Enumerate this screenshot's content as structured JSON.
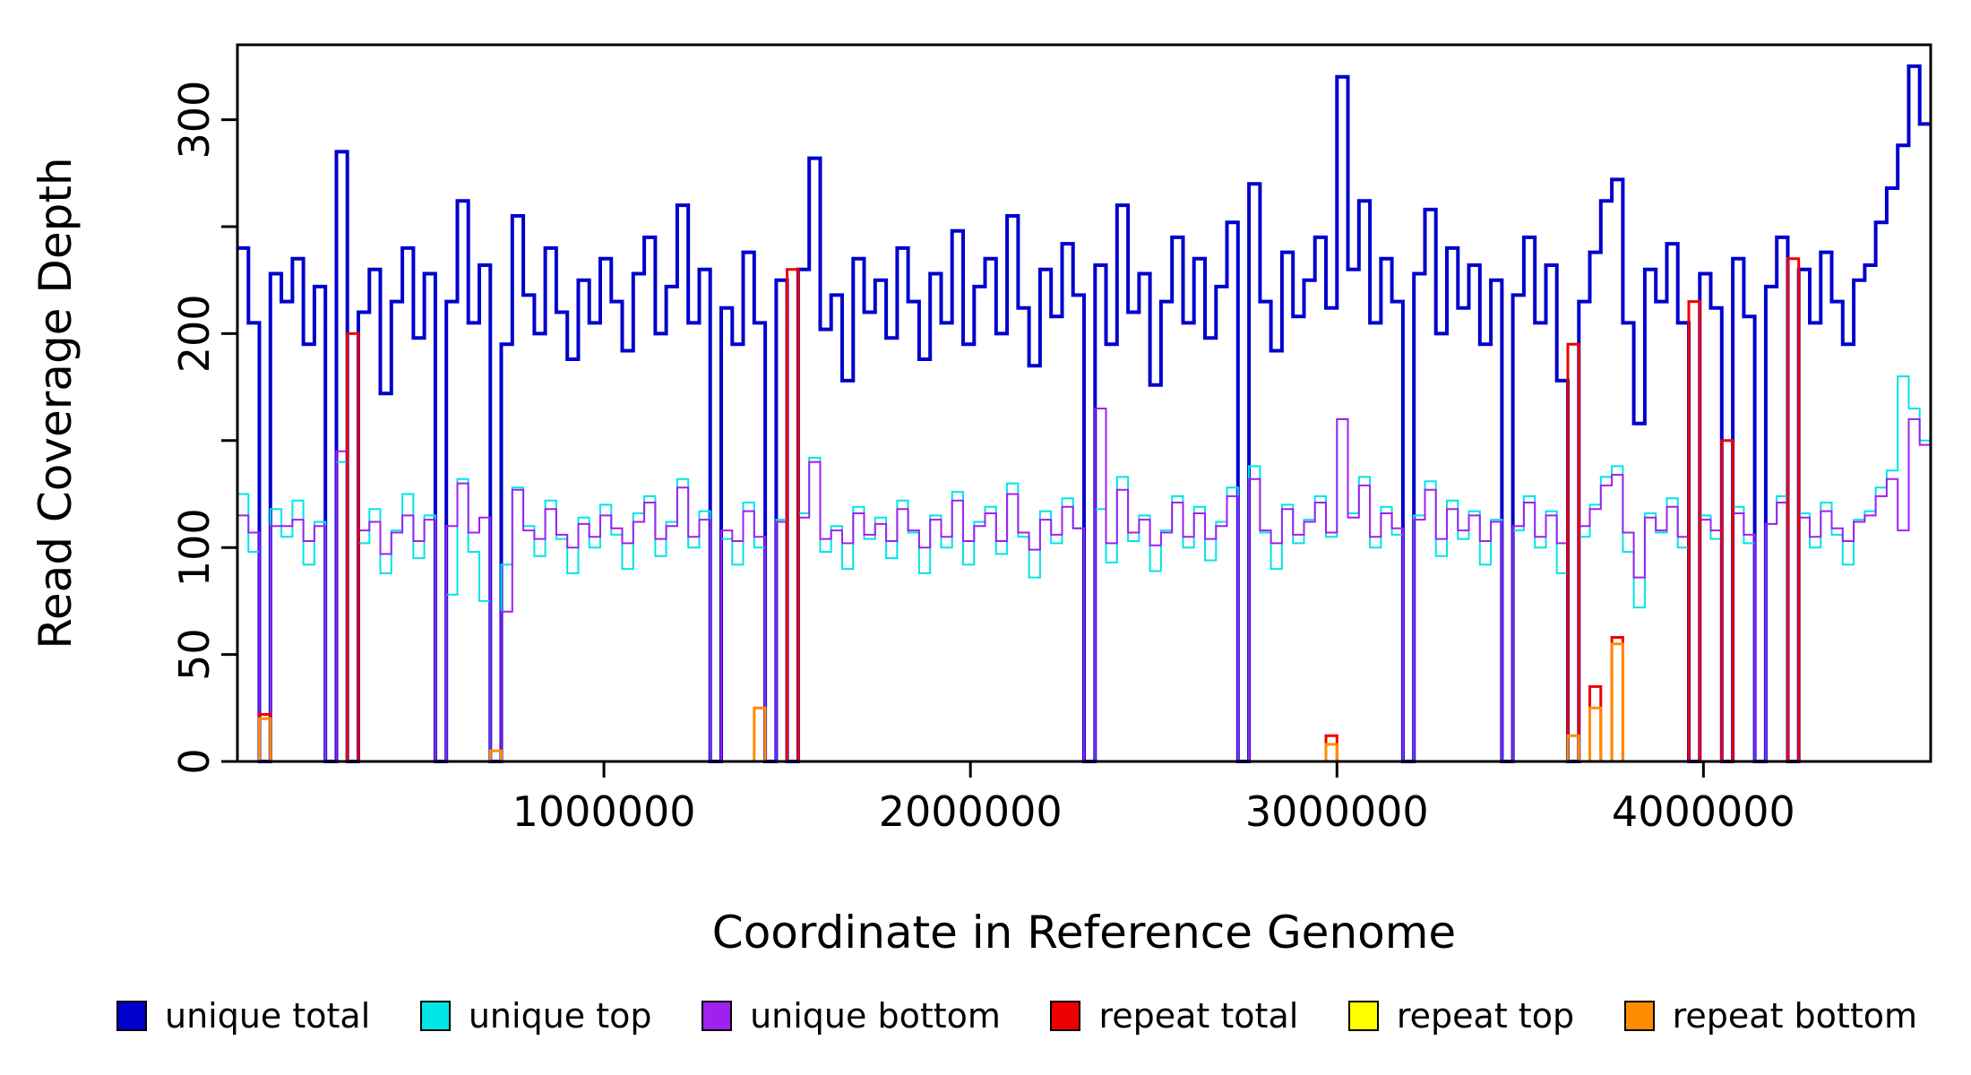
{
  "figure": {
    "ylabel": "Read Coverage Depth",
    "xlabel": "Coordinate in Reference Genome"
  },
  "axes": {
    "x_ticks": [
      {
        "value": 1000000,
        "label": "1000000"
      },
      {
        "value": 2000000,
        "label": "2000000"
      },
      {
        "value": 3000000,
        "label": "3000000"
      },
      {
        "value": 4000000,
        "label": "4000000"
      }
    ],
    "y_ticks": [
      {
        "value": 0,
        "label": "0"
      },
      {
        "value": 50,
        "label": "50"
      },
      {
        "value": 100,
        "label": "100"
      },
      {
        "value": 150,
        "label": ""
      },
      {
        "value": 200,
        "label": "200"
      },
      {
        "value": 250,
        "label": ""
      },
      {
        "value": 300,
        "label": "300"
      }
    ]
  },
  "legend": [
    {
      "label": "unique total",
      "color": "#0000CD"
    },
    {
      "label": "unique top",
      "color": "#00E5E5"
    },
    {
      "label": "unique bottom",
      "color": "#A020F0"
    },
    {
      "label": "repeat total",
      "color": "#EE0000"
    },
    {
      "label": "repeat top",
      "color": "#FFFF00"
    },
    {
      "label": "repeat bottom",
      "color": "#FF8C00"
    }
  ],
  "chart_data": {
    "type": "line",
    "step": true,
    "title": "",
    "xlabel": "Coordinate in Reference Genome",
    "ylabel": "Read Coverage Depth",
    "xlim": [
      0,
      4620000
    ],
    "ylim": [
      0,
      335
    ],
    "x_start": 0,
    "x_step": 30000,
    "series": [
      {
        "name": "unique total",
        "color": "#0000CD",
        "width": 4,
        "values": [
          240,
          205,
          0,
          228,
          215,
          235,
          195,
          222,
          0,
          285,
          0,
          210,
          230,
          172,
          215,
          240,
          198,
          228,
          0,
          215,
          262,
          205,
          232,
          0,
          195,
          255,
          218,
          200,
          240,
          210,
          188,
          225,
          205,
          235,
          215,
          192,
          228,
          245,
          200,
          222,
          260,
          205,
          230,
          0,
          212,
          195,
          238,
          205,
          0,
          225,
          0,
          230,
          282,
          202,
          218,
          178,
          235,
          210,
          225,
          198,
          240,
          215,
          188,
          228,
          205,
          248,
          195,
          222,
          235,
          200,
          255,
          212,
          185,
          230,
          208,
          242,
          218,
          0,
          232,
          195,
          260,
          210,
          228,
          176,
          215,
          245,
          205,
          235,
          198,
          222,
          252,
          0,
          270,
          215,
          192,
          238,
          208,
          225,
          245,
          212,
          320,
          230,
          262,
          205,
          235,
          215,
          0,
          228,
          258,
          200,
          240,
          212,
          232,
          195,
          225,
          0,
          218,
          245,
          205,
          232,
          178,
          0,
          215,
          238,
          262,
          272,
          205,
          158,
          230,
          215,
          242,
          205,
          0,
          228,
          212,
          0,
          235,
          208,
          0,
          222,
          245,
          0,
          230,
          205,
          238,
          215,
          195,
          225,
          232,
          252,
          268,
          288,
          325,
          298
        ]
      },
      {
        "name": "unique top",
        "color": "#00E5E5",
        "width": 2,
        "values": [
          125,
          98,
          0,
          118,
          105,
          122,
          92,
          112,
          0,
          140,
          0,
          102,
          118,
          88,
          108,
          125,
          95,
          115,
          0,
          78,
          132,
          98,
          75,
          0,
          92,
          128,
          110,
          96,
          122,
          104,
          88,
          114,
          100,
          120,
          106,
          90,
          116,
          124,
          96,
          112,
          132,
          100,
          117,
          0,
          104,
          92,
          121,
          100,
          0,
          113,
          0,
          116,
          142,
          98,
          110,
          90,
          119,
          104,
          114,
          95,
          122,
          107,
          88,
          115,
          100,
          126,
          92,
          112,
          119,
          97,
          130,
          105,
          86,
          117,
          102,
          123,
          109,
          0,
          118,
          93,
          133,
          103,
          115,
          89,
          108,
          124,
          100,
          119,
          94,
          112,
          128,
          0,
          138,
          107,
          90,
          120,
          102,
          113,
          124,
          105,
          160,
          116,
          133,
          100,
          119,
          106,
          0,
          115,
          131,
          96,
          122,
          104,
          117,
          92,
          113,
          0,
          108,
          124,
          100,
          117,
          88,
          0,
          105,
          120,
          133,
          138,
          98,
          72,
          116,
          107,
          123,
          100,
          0,
          115,
          104,
          0,
          119,
          102,
          0,
          111,
          124,
          0,
          116,
          100,
          121,
          106,
          92,
          113,
          117,
          128,
          136,
          180,
          165,
          150
        ]
      },
      {
        "name": "unique bottom",
        "color": "#A020F0",
        "width": 2,
        "values": [
          115,
          107,
          0,
          110,
          110,
          113,
          103,
          110,
          0,
          145,
          0,
          108,
          112,
          97,
          107,
          115,
          103,
          113,
          0,
          110,
          130,
          107,
          114,
          0,
          70,
          127,
          108,
          104,
          118,
          106,
          100,
          111,
          105,
          115,
          109,
          102,
          112,
          121,
          104,
          110,
          128,
          105,
          113,
          0,
          108,
          103,
          117,
          105,
          0,
          112,
          0,
          114,
          140,
          104,
          108,
          102,
          116,
          106,
          111,
          103,
          118,
          108,
          100,
          113,
          105,
          122,
          103,
          110,
          116,
          103,
          125,
          107,
          99,
          113,
          106,
          119,
          109,
          0,
          165,
          102,
          127,
          107,
          113,
          101,
          107,
          121,
          105,
          116,
          104,
          110,
          124,
          0,
          132,
          108,
          102,
          118,
          106,
          112,
          121,
          107,
          160,
          114,
          129,
          105,
          116,
          109,
          0,
          113,
          127,
          104,
          118,
          108,
          115,
          103,
          112,
          0,
          110,
          121,
          105,
          115,
          102,
          0,
          110,
          118,
          129,
          134,
          107,
          86,
          114,
          108,
          119,
          105,
          0,
          113,
          108,
          0,
          116,
          106,
          0,
          111,
          121,
          0,
          114,
          105,
          117,
          109,
          103,
          112,
          115,
          124,
          132,
          108,
          160,
          148
        ]
      },
      {
        "name": "repeat total",
        "color": "#EE0000",
        "width": 3,
        "values": [
          0,
          0,
          22,
          0,
          0,
          0,
          0,
          0,
          0,
          0,
          200,
          0,
          0,
          0,
          0,
          0,
          0,
          0,
          0,
          0,
          0,
          0,
          0,
          0,
          0,
          0,
          0,
          0,
          0,
          0,
          0,
          0,
          0,
          0,
          0,
          0,
          0,
          0,
          0,
          0,
          0,
          0,
          0,
          0,
          0,
          0,
          0,
          0,
          0,
          0,
          230,
          0,
          0,
          0,
          0,
          0,
          0,
          0,
          0,
          0,
          0,
          0,
          0,
          0,
          0,
          0,
          0,
          0,
          0,
          0,
          0,
          0,
          0,
          0,
          0,
          0,
          0,
          0,
          0,
          0,
          0,
          0,
          0,
          0,
          0,
          0,
          0,
          0,
          0,
          0,
          0,
          0,
          0,
          0,
          0,
          0,
          0,
          0,
          0,
          12,
          0,
          0,
          0,
          0,
          0,
          0,
          0,
          0,
          0,
          0,
          0,
          0,
          0,
          0,
          0,
          0,
          0,
          0,
          0,
          0,
          0,
          195,
          0,
          35,
          0,
          58,
          0,
          0,
          0,
          0,
          0,
          0,
          215,
          0,
          0,
          150,
          0,
          0,
          0,
          0,
          0,
          235,
          0,
          0,
          0,
          0,
          0,
          0,
          0,
          0,
          0,
          0,
          0,
          0
        ]
      },
      {
        "name": "repeat top",
        "color": "#FFFF00",
        "width": 2,
        "values": [
          0,
          0,
          0,
          0,
          0,
          0,
          0,
          0,
          0,
          0,
          0,
          0,
          0,
          0,
          0,
          0,
          0,
          0,
          0,
          0,
          0,
          0,
          0,
          0,
          0,
          0,
          0,
          0,
          0,
          0,
          0,
          0,
          0,
          0,
          0,
          0,
          0,
          0,
          0,
          0,
          0,
          0,
          0,
          0,
          0,
          0,
          0,
          0,
          0,
          0,
          0,
          0,
          0,
          0,
          0,
          0,
          0,
          0,
          0,
          0,
          0,
          0,
          0,
          0,
          0,
          0,
          0,
          0,
          0,
          0,
          0,
          0,
          0,
          0,
          0,
          0,
          0,
          0,
          0,
          0,
          0,
          0,
          0,
          0,
          0,
          0,
          0,
          0,
          0,
          0,
          0,
          0,
          0,
          0,
          0,
          0,
          0,
          0,
          0,
          0,
          0,
          0,
          0,
          0,
          0,
          0,
          0,
          0,
          0,
          0,
          0,
          0,
          0,
          0,
          0,
          0,
          0,
          0,
          0,
          0,
          0,
          0,
          0,
          0,
          0,
          0,
          0,
          0,
          0,
          0,
          0,
          0,
          0,
          0,
          0,
          0,
          0,
          0,
          0,
          0,
          0,
          0,
          0,
          0,
          0,
          0,
          0,
          0,
          0,
          0,
          0,
          0,
          0,
          0
        ]
      },
      {
        "name": "repeat bottom",
        "color": "#FF8C00",
        "width": 3,
        "values": [
          0,
          0,
          20,
          0,
          0,
          0,
          0,
          0,
          0,
          0,
          0,
          0,
          0,
          0,
          0,
          0,
          0,
          0,
          0,
          0,
          0,
          0,
          0,
          5,
          0,
          0,
          0,
          0,
          0,
          0,
          0,
          0,
          0,
          0,
          0,
          0,
          0,
          0,
          0,
          0,
          0,
          0,
          0,
          0,
          0,
          0,
          0,
          25,
          0,
          0,
          0,
          0,
          0,
          0,
          0,
          0,
          0,
          0,
          0,
          0,
          0,
          0,
          0,
          0,
          0,
          0,
          0,
          0,
          0,
          0,
          0,
          0,
          0,
          0,
          0,
          0,
          0,
          0,
          0,
          0,
          0,
          0,
          0,
          0,
          0,
          0,
          0,
          0,
          0,
          0,
          0,
          0,
          0,
          0,
          0,
          0,
          0,
          0,
          0,
          8,
          0,
          0,
          0,
          0,
          0,
          0,
          0,
          0,
          0,
          0,
          0,
          0,
          0,
          0,
          0,
          0,
          0,
          0,
          0,
          0,
          0,
          12,
          0,
          25,
          0,
          55,
          0,
          0,
          0,
          0,
          0,
          0,
          0,
          0,
          0,
          0,
          0,
          0,
          0,
          0,
          0,
          0,
          0,
          0,
          0,
          0,
          0,
          0,
          0,
          0,
          0,
          0,
          0,
          0
        ]
      }
    ]
  }
}
